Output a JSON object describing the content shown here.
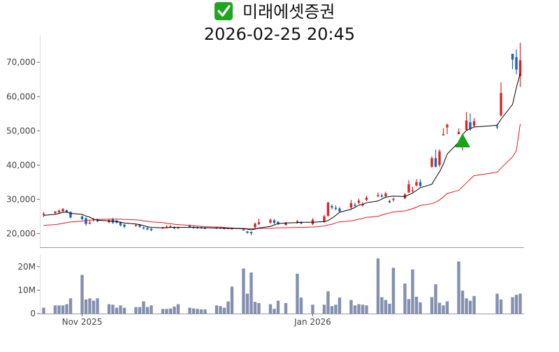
{
  "header": {
    "check_icon": "check-box-icon",
    "name": "미래에셋증권",
    "datetime": "2026-02-25 20:45"
  },
  "colors": {
    "up": "#d62728",
    "down": "#1f63b5",
    "ma_short": "#000000",
    "ma_long": "#e41a1c",
    "volume": "#8590b0",
    "marker": "#1aa11a",
    "check_bg": "#1fa61f"
  },
  "chart_data": [
    {
      "type": "candlestick",
      "title": "",
      "xlabel": "",
      "ylabel": "",
      "ylim": [
        16000,
        78000
      ],
      "y_ticks": [
        20000,
        30000,
        40000,
        50000,
        60000,
        70000
      ],
      "y_tick_labels": [
        "20,000",
        "30,000",
        "40,000",
        "50,000",
        "60,000",
        "70,000"
      ],
      "x_ticks": [
        {
          "date": "2025-11-03",
          "label": "Nov 2025"
        },
        {
          "date": "2026-01-02",
          "label": "Jan 2026"
        }
      ],
      "grid": false,
      "series": [
        {
          "kind": "ohlc",
          "dates": [
            "2025-10-24",
            "2025-10-27",
            "2025-10-28",
            "2025-10-29",
            "2025-10-30",
            "2025-10-31",
            "2025-11-03",
            "2025-11-04",
            "2025-11-05",
            "2025-11-06",
            "2025-11-07",
            "2025-11-10",
            "2025-11-11",
            "2025-11-12",
            "2025-11-13",
            "2025-11-14",
            "2025-11-17",
            "2025-11-18",
            "2025-11-19",
            "2025-11-20",
            "2025-11-21",
            "2025-11-24",
            "2025-11-25",
            "2025-11-26",
            "2025-11-27",
            "2025-11-28",
            "2025-12-01",
            "2025-12-02",
            "2025-12-03",
            "2025-12-04",
            "2025-12-05",
            "2025-12-08",
            "2025-12-09",
            "2025-12-10",
            "2025-12-11",
            "2025-12-12",
            "2025-12-15",
            "2025-12-16",
            "2025-12-17",
            "2025-12-18",
            "2025-12-19",
            "2025-12-22",
            "2025-12-23",
            "2025-12-24",
            "2025-12-26",
            "2025-12-29",
            "2025-12-30",
            "2026-01-02",
            "2026-01-05",
            "2026-01-06",
            "2026-01-07",
            "2026-01-08",
            "2026-01-09",
            "2026-01-12",
            "2026-01-13",
            "2026-01-14",
            "2026-01-15",
            "2026-01-16",
            "2026-01-19",
            "2026-01-20",
            "2026-01-21",
            "2026-01-22",
            "2026-01-23",
            "2026-01-26",
            "2026-01-27",
            "2026-01-28",
            "2026-01-29",
            "2026-01-30",
            "2026-02-02",
            "2026-02-03",
            "2026-02-04",
            "2026-02-05",
            "2026-02-06",
            "2026-02-09",
            "2026-02-10",
            "2026-02-11",
            "2026-02-12",
            "2026-02-13",
            "2026-02-19",
            "2026-02-20",
            "2026-02-23",
            "2026-02-24",
            "2026-02-25"
          ],
          "open": [
            25500,
            26000,
            26200,
            26500,
            26800,
            26300,
            25000,
            24500,
            23200,
            24000,
            24200,
            23300,
            24200,
            23800,
            23300,
            22600,
            22300,
            22600,
            21800,
            21600,
            21400,
            21500,
            21800,
            21900,
            21800,
            21800,
            22400,
            21900,
            21800,
            21800,
            21700,
            21800,
            21700,
            21600,
            21500,
            21600,
            21200,
            20600,
            20500,
            21800,
            22800,
            23200,
            23900,
            23400,
            22500,
            23200,
            23200,
            22800,
            23500,
            25200,
            28000,
            27500,
            27300,
            27600,
            28400,
            29000,
            28200,
            29800,
            31000,
            31100,
            30900,
            29500,
            29800,
            30300,
            32000,
            32300,
            34000,
            35000,
            39500,
            42000,
            40000,
            49000,
            51000,
            49000,
            47000,
            50300,
            52500,
            51500,
            51300,
            54500,
            72500,
            71500,
            66000
          ],
          "close": [
            25800,
            26400,
            26700,
            27200,
            26200,
            24700,
            24200,
            22800,
            23200,
            24200,
            23600,
            23900,
            23200,
            23200,
            22400,
            22000,
            22500,
            22000,
            21500,
            21200,
            21000,
            21800,
            22000,
            22100,
            21600,
            21800,
            21900,
            21600,
            21600,
            21600,
            21500,
            21500,
            21600,
            21400,
            21600,
            21300,
            21100,
            20200,
            20100,
            22900,
            23300,
            24000,
            23100,
            22800,
            23100,
            23600,
            23100,
            24000,
            25000,
            29000,
            27600,
            27200,
            26500,
            28900,
            28100,
            29600,
            28500,
            30500,
            31200,
            30900,
            31700,
            29100,
            30100,
            31400,
            34400,
            32600,
            35000,
            33900,
            42000,
            39500,
            44000,
            49000,
            51800,
            49700,
            48600,
            53000,
            50600,
            52800,
            51000,
            61000,
            70800,
            67900,
            70600
          ],
          "high": [
            26300,
            26600,
            27000,
            27400,
            27000,
            26500,
            25300,
            24700,
            24000,
            24500,
            24400,
            24200,
            24600,
            24000,
            23500,
            22800,
            22800,
            22800,
            22000,
            21900,
            21600,
            22000,
            22400,
            22500,
            22100,
            22000,
            22600,
            22200,
            22000,
            22000,
            21900,
            21900,
            21900,
            21800,
            21800,
            21800,
            21400,
            20800,
            20600,
            23200,
            24300,
            24400,
            24200,
            23600,
            23400,
            24000,
            23600,
            24500,
            25500,
            29300,
            28500,
            28200,
            27700,
            29800,
            29000,
            30200,
            29200,
            31000,
            32000,
            31700,
            32200,
            29900,
            30500,
            31800,
            35600,
            33700,
            35900,
            35900,
            42600,
            44500,
            44600,
            50800,
            52100,
            50700,
            49000,
            55500,
            55100,
            53700,
            52000,
            64200,
            72300,
            73800,
            75700
          ],
          "low": [
            24800,
            25500,
            25900,
            26100,
            26000,
            24400,
            23900,
            22300,
            22700,
            23500,
            23300,
            23000,
            22800,
            22900,
            22100,
            21600,
            22000,
            21700,
            21200,
            21000,
            20700,
            21300,
            21600,
            21800,
            21300,
            21400,
            21700,
            21400,
            21400,
            21400,
            21300,
            21300,
            21400,
            21200,
            21300,
            21100,
            20900,
            20000,
            19500,
            21500,
            22500,
            22900,
            22800,
            22500,
            22300,
            22900,
            22700,
            22400,
            23200,
            24900,
            27100,
            26800,
            26300,
            27100,
            27800,
            28600,
            27900,
            29500,
            30600,
            30500,
            30700,
            28900,
            29300,
            30000,
            31800,
            32000,
            33800,
            33600,
            39200,
            39300,
            39400,
            48600,
            49000,
            49300,
            44300,
            50000,
            50000,
            51000,
            50500,
            54200,
            68000,
            66500,
            62800
          ],
          "gaps_after": [
            "2026-02-13"
          ]
        },
        {
          "kind": "line",
          "name": "",
          "role": "short-ma",
          "values": [
            25300,
            25600,
            25900,
            26200,
            26300,
            25900,
            25600,
            25100,
            24800,
            24200,
            23900,
            23700,
            23600,
            23500,
            23300,
            23100,
            22800,
            22600,
            22300,
            22000,
            21800,
            21700,
            21700,
            21800,
            21800,
            21800,
            21800,
            21800,
            21800,
            21700,
            21700,
            21600,
            21600,
            21600,
            21500,
            21500,
            21400,
            21300,
            21100,
            21300,
            21600,
            22100,
            22500,
            22900,
            23100,
            23200,
            23300,
            23300,
            23500,
            23800,
            24500,
            25300,
            26200,
            27100,
            27600,
            28300,
            28500,
            29000,
            29500,
            30100,
            30600,
            30800,
            30900,
            30800,
            31300,
            31800,
            32600,
            33400,
            34400,
            36300,
            38000,
            40300,
            43200,
            46700,
            48900,
            50100,
            50600,
            51100,
            51600,
            53400,
            57700,
            62600,
            66800
          ]
        },
        {
          "kind": "line",
          "name": "",
          "role": "long-ma",
          "values": [
            22400,
            22600,
            22800,
            23000,
            23200,
            23400,
            23600,
            23800,
            23900,
            24000,
            24100,
            24200,
            24200,
            24200,
            24200,
            24100,
            24000,
            23900,
            23700,
            23600,
            23400,
            23200,
            23000,
            22900,
            22700,
            22600,
            22400,
            22300,
            22200,
            22100,
            22000,
            21900,
            21900,
            21800,
            21700,
            21600,
            21500,
            21400,
            21400,
            21400,
            21500,
            21500,
            21600,
            21700,
            21700,
            21800,
            21800,
            21900,
            22200,
            22500,
            22700,
            23100,
            23400,
            23700,
            23900,
            24200,
            24400,
            24700,
            25000,
            25400,
            25700,
            26000,
            26300,
            26600,
            26900,
            27300,
            27700,
            28200,
            28700,
            29200,
            29800,
            30700,
            31700,
            32600,
            33700,
            34800,
            35900,
            36900,
            37900,
            39100,
            42400,
            44200,
            52000
          ]
        },
        {
          "kind": "marker",
          "shape": "triangle-up",
          "date": "2026-02-10",
          "value": 47000
        }
      ]
    },
    {
      "type": "bar",
      "title": "",
      "xlabel": "",
      "ylabel": "",
      "ylim": [
        0,
        25000000
      ],
      "y_ticks": [
        0,
        10000000,
        20000000
      ],
      "y_tick_labels": [
        "0",
        "10M",
        "20M"
      ],
      "values": [
        2500000,
        3500000,
        3500000,
        3500000,
        4000000,
        6500000,
        16500000,
        6000000,
        6500000,
        5500000,
        6500000,
        4000000,
        3800000,
        2500000,
        3500000,
        2500000,
        2800000,
        2800000,
        5200000,
        2800000,
        3500000,
        2000000,
        2000000,
        2200000,
        3000000,
        4000000,
        2500000,
        2200000,
        2000000,
        1800000,
        1800000,
        3500000,
        3200000,
        2500000,
        5200000,
        11500000,
        19200000,
        8500000,
        17500000,
        5000000,
        4500000,
        4000000,
        2000000,
        5500000,
        4500000,
        17000000,
        6800000,
        3800000,
        3800000,
        9500000,
        3200000,
        3800000,
        6800000,
        5800000,
        3500000,
        4000000,
        3800000,
        3500000,
        23500000,
        7000000,
        5800000,
        4200000,
        19500000,
        12800000,
        6200000,
        18800000,
        7200000,
        4800000,
        7000000,
        12500000,
        4600000,
        3500000,
        5200000,
        22200000,
        9800000,
        6500000,
        5500000,
        7500000,
        8500000,
        6000000,
        7000000,
        8000000,
        8500000
      ]
    }
  ]
}
